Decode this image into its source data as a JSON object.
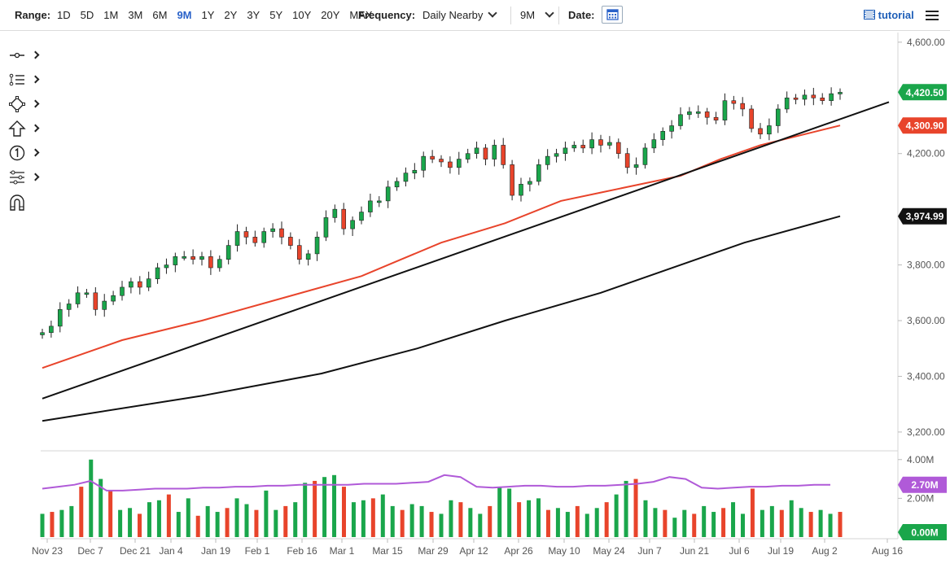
{
  "toolbar": {
    "range_label": "Range:",
    "ranges": [
      "1D",
      "5D",
      "1M",
      "3M",
      "6M",
      "9M",
      "1Y",
      "2Y",
      "3Y",
      "5Y",
      "10Y",
      "20Y",
      "MAX"
    ],
    "active_range": "9M",
    "frequency_label": "Frequency:",
    "frequency_value": "Daily Nearby",
    "period_value": "9M",
    "date_label": "Date:",
    "tutorial_label": "tutorial"
  },
  "side_tools": [
    "crosshair-tool",
    "trend-lines-tool",
    "shapes-tool",
    "arrows-tool",
    "counter-tool",
    "indicators-tool",
    "magnet-tool"
  ],
  "chart_data": {
    "type": "candlestick",
    "price_axis": {
      "ticks": [
        "4,600.00",
        "4,200.00",
        "3,800.00",
        "3,600.00",
        "3,400.00",
        "3,200.00"
      ],
      "range": [
        3150,
        4620
      ]
    },
    "x_ticks": [
      "Nov 23",
      "Dec 7",
      "Dec 21",
      "Jan 4",
      "Jan 19",
      "Feb 1",
      "Feb 16",
      "Mar 1",
      "Mar 15",
      "Mar 29",
      "Apr 12",
      "Apr 26",
      "May 10",
      "May 24",
      "Jun 7",
      "Jun 21",
      "Jul 6",
      "Jul 19",
      "Aug 2",
      "Aug 16"
    ],
    "price_labels": [
      {
        "text": "4,420.50",
        "value": 4420.5,
        "color": "#1aa64b"
      },
      {
        "text": "4,300.90",
        "value": 4300.9,
        "color": "#e8442b"
      },
      {
        "text": "3,974.99",
        "value": 3974.99,
        "color": "#111111"
      }
    ],
    "candles_sampled_close": [
      3557,
      3580,
      3640,
      3660,
      3700,
      3700,
      3640,
      3670,
      3690,
      3720,
      3740,
      3720,
      3750,
      3790,
      3800,
      3830,
      3830,
      3820,
      3830,
      3790,
      3820,
      3870,
      3920,
      3900,
      3880,
      3920,
      3930,
      3900,
      3870,
      3820,
      3840,
      3900,
      3970,
      4000,
      3930,
      3960,
      3990,
      4030,
      4030,
      4080,
      4100,
      4130,
      4140,
      4190,
      4180,
      4170,
      4150,
      4180,
      4200,
      4220,
      4180,
      4230,
      4160,
      4050,
      4090,
      4100,
      4160,
      4190,
      4200,
      4220,
      4230,
      4220,
      4250,
      4230,
      4240,
      4200,
      4150,
      4160,
      4220,
      4250,
      4280,
      4300,
      4340,
      4350,
      4350,
      4330,
      4320,
      4390,
      4380,
      4360,
      4290,
      4270,
      4300,
      4360,
      4400,
      4395,
      4410,
      4400,
      4390,
      4415,
      4420
    ],
    "moving_averages": [
      {
        "color": "#e8442b",
        "points": [
          [
            3430,
            0
          ],
          [
            3530,
            0.1
          ],
          [
            3600,
            0.2
          ],
          [
            3680,
            0.3
          ],
          [
            3760,
            0.4
          ],
          [
            3820,
            0.45
          ],
          [
            3880,
            0.5
          ],
          [
            3950,
            0.58
          ],
          [
            4030,
            0.65
          ],
          [
            4060,
            0.7
          ],
          [
            4120,
            0.8
          ],
          [
            4180,
            0.85
          ],
          [
            4230,
            0.9
          ],
          [
            4300.9,
            1
          ]
        ]
      },
      {
        "color": "#111111",
        "points": [
          [
            3240,
            0
          ],
          [
            3330,
            0.2
          ],
          [
            3410,
            0.35
          ],
          [
            3500,
            0.47
          ],
          [
            3600,
            0.58
          ],
          [
            3700,
            0.7
          ],
          [
            3800,
            0.8
          ],
          [
            3880,
            0.88
          ],
          [
            3974.99,
            1
          ]
        ]
      }
    ],
    "trendline": {
      "start": 3320,
      "end": 4385
    },
    "volume": {
      "axis_ticks": [
        "4.00M",
        "2.00M"
      ],
      "range": [
        0,
        4.2
      ],
      "labels": [
        {
          "text": "2.70M",
          "value": 2.7,
          "color": "#b05ad8"
        },
        {
          "text": "0.00M",
          "value": 0.0,
          "color": "#1aa64b"
        }
      ],
      "bars_sampled": [
        1.2,
        1.3,
        1.4,
        1.6,
        2.6,
        4.0,
        3.0,
        2.4,
        1.4,
        1.5,
        1.2,
        1.8,
        1.9,
        2.2,
        1.3,
        2.0,
        1.1,
        1.6,
        1.3,
        1.5,
        2.0,
        1.7,
        1.4,
        2.4,
        1.4,
        1.6,
        1.8,
        2.8,
        2.9,
        3.1,
        3.2,
        2.6,
        1.8,
        1.9,
        2.0,
        2.2,
        1.6,
        1.4,
        1.7,
        1.6,
        1.3,
        1.2,
        1.9,
        1.8,
        1.5,
        1.2,
        1.6,
        2.6,
        2.5,
        1.8,
        1.9,
        2.0,
        1.4,
        1.5,
        1.3,
        1.6,
        1.2,
        1.5,
        1.8,
        2.2,
        2.9,
        3.0,
        1.9,
        1.5,
        1.4,
        1.0,
        1.4,
        1.2,
        1.6,
        1.3,
        1.5,
        1.8,
        1.2,
        2.5,
        1.4,
        1.6,
        1.4,
        1.9,
        1.5,
        1.3,
        1.4,
        1.2,
        1.3
      ],
      "avg_line": [
        2.5,
        2.6,
        2.7,
        2.9,
        2.4,
        2.4,
        2.45,
        2.5,
        2.5,
        2.5,
        2.55,
        2.55,
        2.6,
        2.6,
        2.65,
        2.65,
        2.7,
        2.7,
        2.7,
        2.7,
        2.75,
        2.75,
        2.75,
        2.8,
        2.85,
        3.2,
        3.1,
        2.6,
        2.55,
        2.6,
        2.65,
        2.65,
        2.6,
        2.6,
        2.65,
        2.65,
        2.7,
        2.75,
        2.85,
        3.1,
        3.0,
        2.55,
        2.5,
        2.55,
        2.6,
        2.6,
        2.65,
        2.65,
        2.7,
        2.7
      ]
    }
  }
}
